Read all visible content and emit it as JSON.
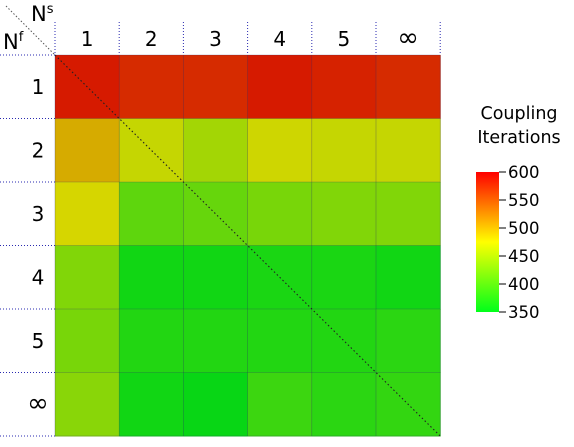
{
  "chart_data": {
    "type": "heatmap",
    "x_axis_symbol": "N",
    "x_axis_superscript": "s",
    "y_axis_symbol": "N",
    "y_axis_superscript": "f",
    "x_categories": [
      "1",
      "2",
      "3",
      "4",
      "5",
      "∞"
    ],
    "y_categories": [
      "1",
      "2",
      "3",
      "4",
      "5",
      "∞"
    ],
    "values": [
      [
        585,
        575,
        575,
        585,
        580,
        575
      ],
      [
        500,
        465,
        445,
        470,
        465,
        465
      ],
      [
        475,
        405,
        410,
        420,
        425,
        425
      ],
      [
        425,
        360,
        360,
        365,
        365,
        360
      ],
      [
        420,
        370,
        370,
        370,
        370,
        375
      ],
      [
        430,
        360,
        355,
        385,
        375,
        380
      ]
    ],
    "colorbar": {
      "title_line1": "Coupling",
      "title_line2": "Iterations",
      "min": 350,
      "max": 600,
      "ticks": [
        "600",
        "550",
        "500",
        "450",
        "400",
        "350"
      ],
      "colors": [
        "#00ff1a",
        "#ffff00",
        "#ff0000"
      ]
    },
    "diagonal_line": true,
    "dotted_gridlines": true
  }
}
